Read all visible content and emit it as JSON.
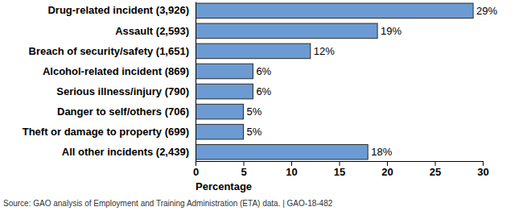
{
  "chart_data": {
    "type": "bar",
    "orientation": "horizontal",
    "categories": [
      "Drug-related incident (3,926)",
      "Assault (2,593)",
      "Breach of security/safety (1,651)",
      "Alcohol-related incident (869)",
      "Serious illness/injury (790)",
      "Danger to self/others (706)",
      "Theft or damage to property (699)",
      "All other incidents (2,439)"
    ],
    "values": [
      29,
      19,
      12,
      6,
      6,
      5,
      5,
      18
    ],
    "value_labels": [
      "29%",
      "19%",
      "12%",
      "6%",
      "6%",
      "5%",
      "5%",
      "18%"
    ],
    "data_labels": true,
    "color": "#6b9bd2",
    "xlim": [
      0,
      30
    ],
    "xticks": [
      0,
      5,
      10,
      15,
      20,
      25,
      30
    ],
    "x_label": "Percentage",
    "grid": false,
    "source": "Source:  GAO analysis of Employment and Training Administration (ETA) data.  |  GAO-18-482"
  }
}
